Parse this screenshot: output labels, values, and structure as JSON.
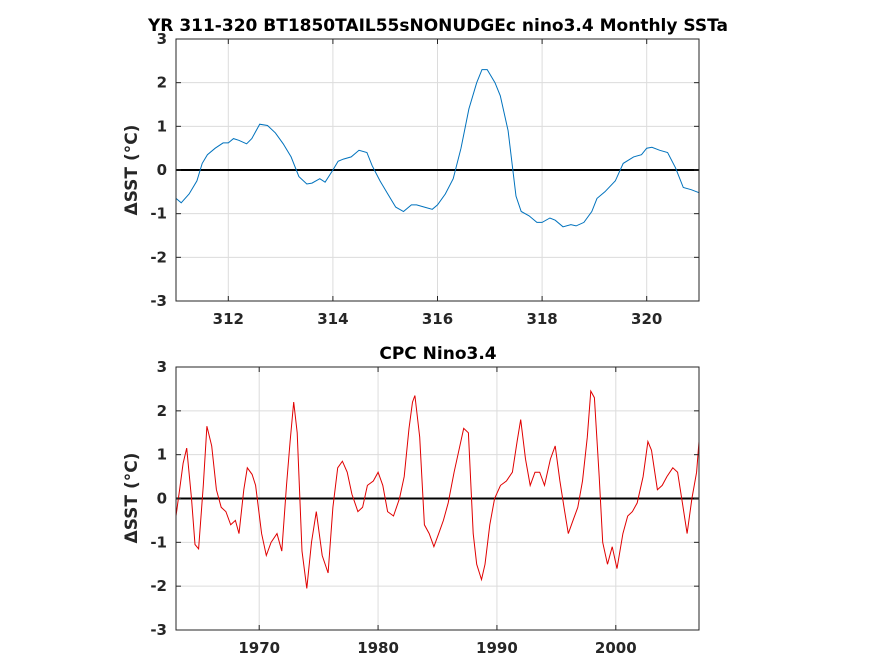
{
  "chart_data": [
    {
      "type": "line",
      "title": "YR 311-320 BT1850TAIL55sNONUDGEc nino3.4 Monthly SSTa",
      "xlabel": "",
      "ylabel": "ΔSST (°C)",
      "xlim": [
        311,
        321
      ],
      "ylim": [
        -3,
        3
      ],
      "xticks": [
        312,
        314,
        316,
        318,
        320
      ],
      "yticks": [
        -3,
        -2,
        -1,
        0,
        1,
        2,
        3
      ],
      "grid": true,
      "zero_line": true,
      "series": [
        {
          "color": "#0072BD",
          "x": [
            311.0,
            311.1,
            311.25,
            311.4,
            311.5,
            311.6,
            311.75,
            311.9,
            312.0,
            312.1,
            312.2,
            312.35,
            312.45,
            312.6,
            312.75,
            312.9,
            313.05,
            313.2,
            313.35,
            313.5,
            313.6,
            313.75,
            313.85,
            314.0,
            314.1,
            314.2,
            314.35,
            314.5,
            314.65,
            314.75,
            314.9,
            315.05,
            315.2,
            315.35,
            315.5,
            315.6,
            315.75,
            315.9,
            316.0,
            316.15,
            316.3,
            316.45,
            316.6,
            316.75,
            316.85,
            316.95,
            317.1,
            317.2,
            317.35,
            317.5,
            317.6,
            317.75,
            317.9,
            318.0,
            318.15,
            318.25,
            318.4,
            318.55,
            318.65,
            318.8,
            318.95,
            319.05,
            319.2,
            319.4,
            319.55,
            319.75,
            319.9,
            320.0,
            320.1,
            320.25,
            320.4,
            320.55,
            320.7,
            320.85,
            321.0
          ],
          "y": [
            -0.65,
            -0.75,
            -0.55,
            -0.25,
            0.15,
            0.35,
            0.5,
            0.62,
            0.62,
            0.72,
            0.68,
            0.6,
            0.72,
            1.05,
            1.02,
            0.85,
            0.6,
            0.3,
            -0.15,
            -0.32,
            -0.3,
            -0.2,
            -0.28,
            0.0,
            0.2,
            0.25,
            0.3,
            0.45,
            0.4,
            0.1,
            -0.25,
            -0.55,
            -0.85,
            -0.95,
            -0.8,
            -0.8,
            -0.85,
            -0.9,
            -0.8,
            -0.55,
            -0.2,
            0.5,
            1.4,
            2.0,
            2.3,
            2.3,
            2.0,
            1.7,
            0.9,
            -0.6,
            -0.95,
            -1.05,
            -1.2,
            -1.2,
            -1.1,
            -1.15,
            -1.3,
            -1.25,
            -1.28,
            -1.2,
            -0.95,
            -0.65,
            -0.5,
            -0.25,
            0.15,
            0.3,
            0.35,
            0.5,
            0.52,
            0.45,
            0.4,
            0.05,
            -0.4,
            -0.45,
            -0.52
          ]
        }
      ]
    },
    {
      "type": "line",
      "title": "CPC Nino3.4",
      "xlabel": "",
      "ylabel": "ΔSST (°C)",
      "xlim": [
        1963,
        2007
      ],
      "ylim": [
        -3,
        3
      ],
      "xticks": [
        1970,
        1980,
        1990,
        2000
      ],
      "yticks": [
        -3,
        -2,
        -1,
        0,
        1,
        2,
        3
      ],
      "grid": true,
      "zero_line": true,
      "series": [
        {
          "color": "#E00000",
          "x": [
            1963.0,
            1963.3,
            1963.6,
            1963.9,
            1964.3,
            1964.6,
            1964.9,
            1965.3,
            1965.6,
            1966.0,
            1966.4,
            1966.8,
            1967.2,
            1967.6,
            1968.0,
            1968.3,
            1968.7,
            1969.0,
            1969.4,
            1969.7,
            1970.2,
            1970.6,
            1971.0,
            1971.5,
            1971.9,
            1972.3,
            1972.6,
            1972.9,
            1973.2,
            1973.6,
            1974.0,
            1974.4,
            1974.8,
            1975.3,
            1975.8,
            1976.2,
            1976.6,
            1977.0,
            1977.4,
            1977.8,
            1978.3,
            1978.7,
            1979.1,
            1979.6,
            1980.0,
            1980.4,
            1980.8,
            1981.3,
            1981.8,
            1982.2,
            1982.6,
            1982.9,
            1983.1,
            1983.5,
            1983.9,
            1984.3,
            1984.7,
            1985.1,
            1985.5,
            1985.9,
            1986.4,
            1986.8,
            1987.2,
            1987.6,
            1988.0,
            1988.3,
            1988.7,
            1989.0,
            1989.4,
            1989.8,
            1990.3,
            1990.8,
            1991.3,
            1991.7,
            1992.0,
            1992.4,
            1992.8,
            1993.2,
            1993.6,
            1994.0,
            1994.5,
            1994.9,
            1995.3,
            1995.7,
            1996.0,
            1996.4,
            1996.8,
            1997.2,
            1997.6,
            1997.9,
            1998.2,
            1998.6,
            1998.9,
            1999.3,
            1999.7,
            2000.1,
            2000.6,
            2001.0,
            2001.4,
            2001.8,
            2002.3,
            2002.7,
            2003.0,
            2003.5,
            2003.9,
            2004.3,
            2004.8,
            2005.2,
            2005.6,
            2006.0,
            2006.4,
            2006.8,
            2007.0
          ],
          "y": [
            -0.4,
            0.2,
            0.8,
            1.15,
            0.0,
            -1.05,
            -1.15,
            0.3,
            1.65,
            1.2,
            0.2,
            -0.2,
            -0.3,
            -0.6,
            -0.5,
            -0.8,
            0.2,
            0.7,
            0.55,
            0.3,
            -0.8,
            -1.3,
            -1.0,
            -0.8,
            -1.2,
            0.3,
            1.3,
            2.2,
            1.5,
            -1.2,
            -2.05,
            -1.0,
            -0.3,
            -1.3,
            -1.7,
            -0.2,
            0.7,
            0.85,
            0.6,
            0.1,
            -0.3,
            -0.2,
            0.3,
            0.4,
            0.6,
            0.3,
            -0.3,
            -0.4,
            0.0,
            0.5,
            1.6,
            2.2,
            2.35,
            1.4,
            -0.6,
            -0.8,
            -1.1,
            -0.8,
            -0.5,
            -0.1,
            0.6,
            1.1,
            1.6,
            1.5,
            -0.8,
            -1.5,
            -1.85,
            -1.5,
            -0.6,
            0.0,
            0.3,
            0.4,
            0.6,
            1.3,
            1.8,
            0.9,
            0.3,
            0.6,
            0.6,
            0.3,
            0.9,
            1.2,
            0.4,
            -0.3,
            -0.8,
            -0.5,
            -0.2,
            0.4,
            1.4,
            2.45,
            2.3,
            0.5,
            -1.0,
            -1.5,
            -1.1,
            -1.6,
            -0.8,
            -0.4,
            -0.3,
            -0.1,
            0.5,
            1.3,
            1.1,
            0.2,
            0.3,
            0.5,
            0.7,
            0.6,
            -0.1,
            -0.8,
            0.0,
            0.6,
            1.3
          ]
        }
      ]
    }
  ]
}
